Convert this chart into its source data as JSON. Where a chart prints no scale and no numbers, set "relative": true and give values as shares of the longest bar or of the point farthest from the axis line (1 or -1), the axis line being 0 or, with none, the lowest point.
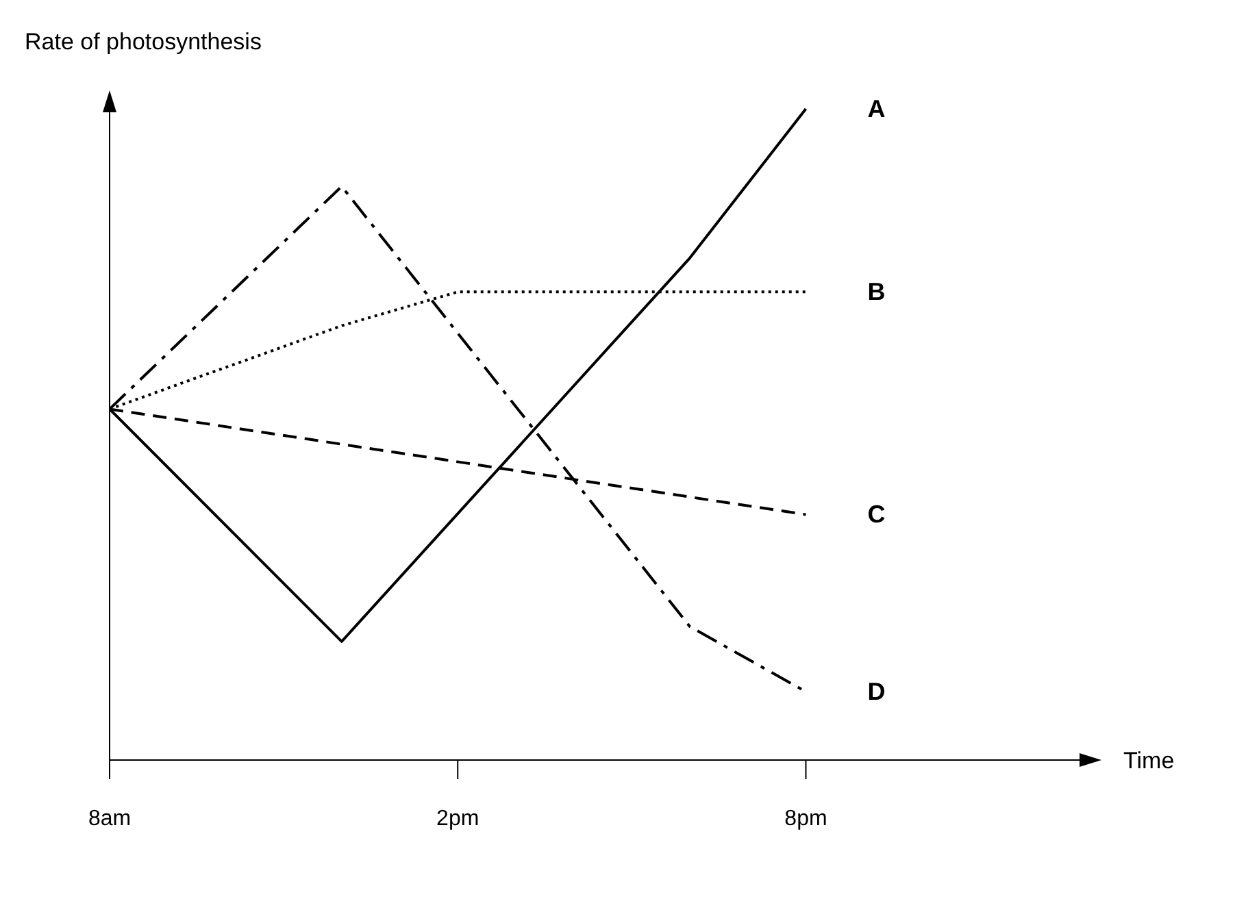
{
  "chart_data": {
    "type": "line",
    "ylabel": "Rate of photosynthesis",
    "xlabel": "Time",
    "relative": true,
    "categories": [
      "8am",
      null,
      null,
      null,
      null,
      null,
      "2pm",
      null,
      null,
      null,
      null,
      null,
      "8pm",
      null,
      null,
      null,
      null,
      null
    ],
    "grid": false,
    "legend": false,
    "series": [
      {
        "name": "A",
        "color": "#000000",
        "line_style": "solid",
        "values": [
          0.539,
          null,
          null,
          null,
          0.182,
          null,
          null,
          null,
          null,
          null,
          0.771,
          null,
          1,
          null,
          null,
          null,
          null,
          null
        ]
      },
      {
        "name": "B",
        "color": "#000000",
        "line_style": "dotted",
        "values": [
          0.539,
          null,
          null,
          null,
          0.667,
          null,
          0.719,
          null,
          null,
          null,
          null,
          null,
          0.719,
          null,
          null,
          null,
          null,
          null
        ]
      },
      {
        "name": "C",
        "color": "#000000",
        "line_style": "dashed",
        "values": [
          0.539,
          null,
          null,
          null,
          null,
          null,
          null,
          null,
          null,
          null,
          null,
          null,
          0.377,
          null,
          null,
          null,
          null,
          null
        ]
      },
      {
        "name": "D",
        "color": "#000000",
        "line_style": "dashdot",
        "values": [
          0.539,
          null,
          null,
          null,
          0.881,
          null,
          null,
          null,
          null,
          null,
          0.205,
          null,
          0.105,
          null,
          null,
          null,
          null,
          null
        ]
      }
    ]
  }
}
